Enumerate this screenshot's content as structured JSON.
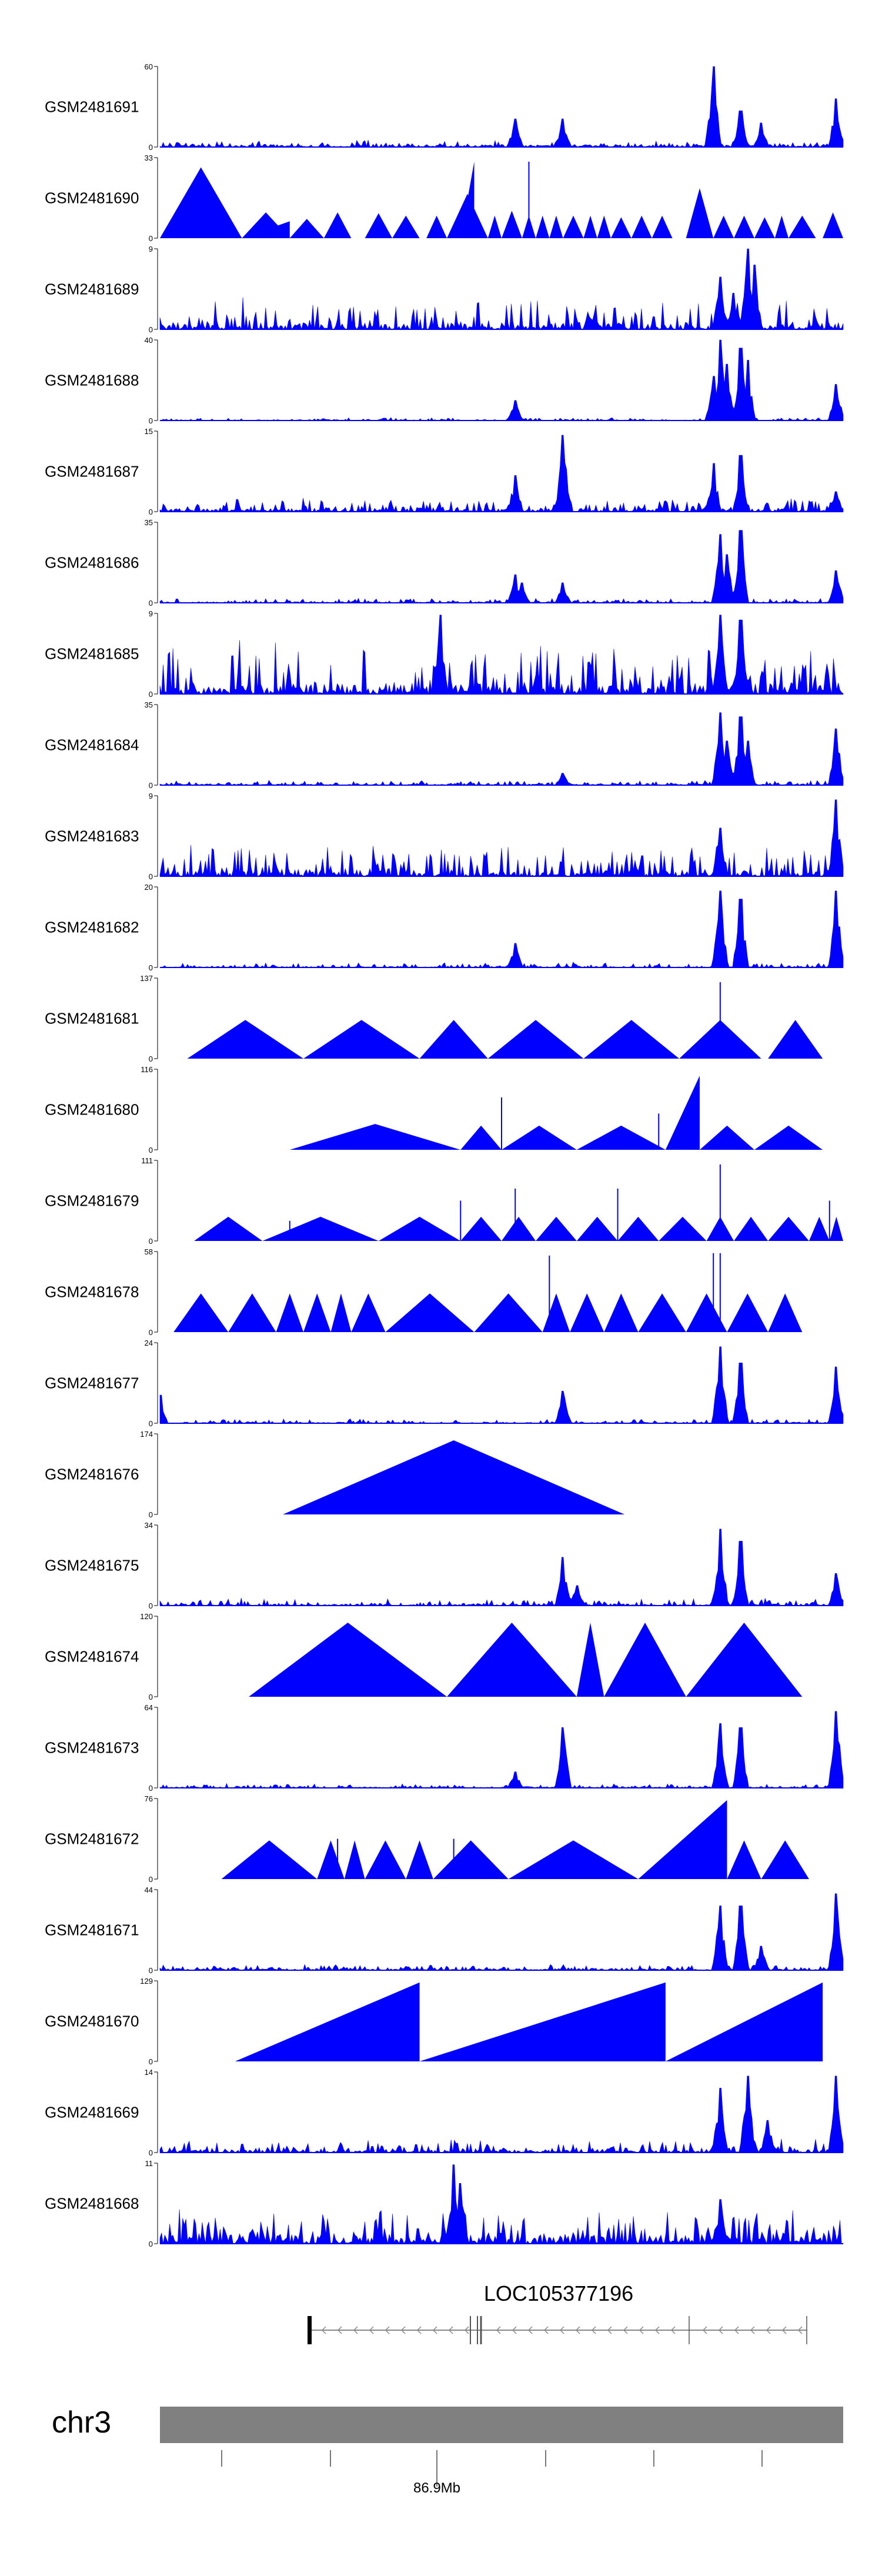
{
  "chart_data": {
    "type": "area",
    "title": "",
    "xlabel": "",
    "ylabel": "",
    "color": "#0000ff",
    "grid": false,
    "region": {
      "chromosome": "chr3",
      "axis_label": "86.9Mb"
    },
    "gene": {
      "name": "LOC105377196",
      "strand": "-"
    },
    "tracks": [
      {
        "name": "GSM2481691",
        "ymax": "60",
        "ymin": "0",
        "style": "spiky",
        "seed": 1,
        "base": 0.04,
        "noise": 0.06,
        "peaks": [
          [
            0.52,
            0.35
          ],
          [
            0.59,
            0.35
          ],
          [
            0.81,
            1.0
          ],
          [
            0.85,
            0.45
          ],
          [
            0.88,
            0.3
          ],
          [
            0.99,
            0.6
          ]
        ]
      },
      {
        "name": "GSM2481690",
        "ymax": "33",
        "ymin": "0",
        "style": "tri",
        "tris": [
          [
            0.0,
            0.12,
            0.88,
            1
          ],
          [
            0.12,
            0.19,
            0.32,
            1
          ],
          [
            0.12,
            0.19,
            0.21,
            0
          ],
          [
            0.19,
            0.24,
            0.24,
            1
          ],
          [
            0.24,
            0.28,
            0.32,
            1
          ],
          [
            0.3,
            0.34,
            0.31,
            1
          ],
          [
            0.34,
            0.38,
            0.28,
            1
          ],
          [
            0.39,
            0.42,
            0.28,
            1
          ],
          [
            0.42,
            0.48,
            0.55,
            1
          ],
          [
            0.44,
            0.46,
            0.95,
            0
          ],
          [
            0.48,
            0.5,
            0.28,
            1
          ],
          [
            0.5,
            0.53,
            0.34,
            1
          ],
          [
            0.53,
            0.55,
            0.28,
            1
          ],
          [
            0.55,
            0.57,
            0.28,
            1
          ],
          [
            0.57,
            0.59,
            0.28,
            1
          ],
          [
            0.59,
            0.62,
            0.28,
            1
          ],
          [
            0.62,
            0.64,
            0.28,
            1
          ],
          [
            0.64,
            0.66,
            0.28,
            1
          ],
          [
            0.66,
            0.69,
            0.26,
            1
          ],
          [
            0.69,
            0.72,
            0.28,
            1
          ],
          [
            0.72,
            0.75,
            0.28,
            1
          ],
          [
            0.77,
            0.81,
            0.62,
            1
          ],
          [
            0.81,
            0.84,
            0.28,
            1
          ],
          [
            0.84,
            0.87,
            0.28,
            1
          ],
          [
            0.87,
            0.9,
            0.26,
            1
          ],
          [
            0.9,
            0.92,
            0.28,
            1
          ],
          [
            0.92,
            0.96,
            0.28,
            1
          ],
          [
            0.97,
            1.0,
            0.32,
            1
          ]
        ],
        "spikes": [
          [
            0.54,
            0.95
          ]
        ]
      },
      {
        "name": "GSM2481689",
        "ymax": "9",
        "ymin": "0",
        "style": "spiky",
        "seed": 3,
        "base": 0.1,
        "noise": 0.32,
        "peaks": [
          [
            0.82,
            0.65
          ],
          [
            0.86,
            1.0
          ],
          [
            0.87,
            0.8
          ],
          [
            0.84,
            0.45
          ]
        ]
      },
      {
        "name": "GSM2481688",
        "ymax": "40",
        "ymin": "0",
        "style": "spiky",
        "seed": 4,
        "base": 0.01,
        "noise": 0.03,
        "peaks": [
          [
            0.52,
            0.25
          ],
          [
            0.81,
            0.55
          ],
          [
            0.82,
            1.0
          ],
          [
            0.83,
            0.7
          ],
          [
            0.85,
            0.9
          ],
          [
            0.86,
            0.75
          ],
          [
            0.99,
            0.45
          ]
        ]
      },
      {
        "name": "GSM2481687",
        "ymax": "15",
        "ymin": "0",
        "style": "spiky",
        "seed": 5,
        "base": 0.05,
        "noise": 0.14,
        "peaks": [
          [
            0.52,
            0.45
          ],
          [
            0.59,
            0.95
          ],
          [
            0.81,
            0.6
          ],
          [
            0.85,
            0.7
          ],
          [
            0.99,
            0.25
          ]
        ]
      },
      {
        "name": "GSM2481686",
        "ymax": "35",
        "ymin": "0",
        "style": "spiky",
        "seed": 6,
        "base": 0.02,
        "noise": 0.05,
        "peaks": [
          [
            0.52,
            0.35
          ],
          [
            0.53,
            0.25
          ],
          [
            0.59,
            0.25
          ],
          [
            0.82,
            0.85
          ],
          [
            0.83,
            0.6
          ],
          [
            0.85,
            0.9
          ],
          [
            0.99,
            0.4
          ]
        ]
      },
      {
        "name": "GSM2481685",
        "ymax": "9",
        "ymin": "0",
        "style": "spiky",
        "seed": 7,
        "base": 0.18,
        "noise": 0.55,
        "peaks": [
          [
            0.41,
            0.98
          ],
          [
            0.82,
            0.98
          ],
          [
            0.85,
            0.92
          ]
        ]
      },
      {
        "name": "GSM2481684",
        "ymax": "35",
        "ymin": "0",
        "style": "spiky",
        "seed": 8,
        "base": 0.02,
        "noise": 0.05,
        "peaks": [
          [
            0.59,
            0.15
          ],
          [
            0.82,
            0.9
          ],
          [
            0.83,
            0.55
          ],
          [
            0.85,
            0.85
          ],
          [
            0.86,
            0.55
          ],
          [
            0.99,
            0.7
          ]
        ]
      },
      {
        "name": "GSM2481683",
        "ymax": "9",
        "ymin": "0",
        "style": "spiky",
        "seed": 9,
        "base": 0.1,
        "noise": 0.35,
        "peaks": [
          [
            0.82,
            0.6
          ],
          [
            0.99,
            0.95
          ]
        ]
      },
      {
        "name": "GSM2481682",
        "ymax": "20",
        "ymin": "0",
        "style": "spiky",
        "seed": 10,
        "base": 0.02,
        "noise": 0.05,
        "peaks": [
          [
            0.52,
            0.3
          ],
          [
            0.82,
            0.95
          ],
          [
            0.85,
            0.85
          ],
          [
            0.99,
            0.95
          ]
        ]
      },
      {
        "name": "GSM2481681",
        "ymax": "137",
        "ymin": "0",
        "style": "tri",
        "tris": [
          [
            0.04,
            0.21,
            0.48,
            1
          ],
          [
            0.21,
            0.38,
            0.48,
            1
          ],
          [
            0.38,
            0.48,
            0.48,
            1
          ],
          [
            0.48,
            0.62,
            0.48,
            1
          ],
          [
            0.62,
            0.76,
            0.48,
            1
          ],
          [
            0.76,
            0.88,
            0.48,
            1
          ],
          [
            0.89,
            0.97,
            0.48,
            1
          ]
        ],
        "spikes": [
          [
            0.82,
            0.95
          ]
        ]
      },
      {
        "name": "GSM2481680",
        "ymax": "116",
        "ymin": "0",
        "style": "tri",
        "tris": [
          [
            0.19,
            0.44,
            0.32,
            1
          ],
          [
            0.44,
            0.5,
            0.3,
            1
          ],
          [
            0.5,
            0.61,
            0.3,
            1
          ],
          [
            0.61,
            0.74,
            0.3,
            1
          ],
          [
            0.74,
            0.79,
            0.92,
            0
          ],
          [
            0.79,
            0.87,
            0.3,
            1
          ],
          [
            0.87,
            0.97,
            0.3,
            1
          ]
        ],
        "spikes": [
          [
            0.5,
            0.65
          ],
          [
            0.73,
            0.45
          ]
        ]
      },
      {
        "name": "GSM2481679",
        "ymax": "111",
        "ymin": "0",
        "style": "tri",
        "tris": [
          [
            0.05,
            0.15,
            0.3,
            1
          ],
          [
            0.15,
            0.32,
            0.3,
            1
          ],
          [
            0.32,
            0.44,
            0.3,
            1
          ],
          [
            0.44,
            0.5,
            0.3,
            1
          ],
          [
            0.5,
            0.55,
            0.3,
            1
          ],
          [
            0.55,
            0.61,
            0.3,
            1
          ],
          [
            0.61,
            0.67,
            0.3,
            1
          ],
          [
            0.67,
            0.73,
            0.3,
            1
          ],
          [
            0.73,
            0.8,
            0.3,
            1
          ],
          [
            0.8,
            0.84,
            0.3,
            1
          ],
          [
            0.84,
            0.89,
            0.3,
            1
          ],
          [
            0.89,
            0.95,
            0.3,
            1
          ],
          [
            0.95,
            0.98,
            0.3,
            1
          ],
          [
            0.98,
            1.0,
            0.3,
            1
          ]
        ],
        "spikes": [
          [
            0.19,
            0.25
          ],
          [
            0.44,
            0.5
          ],
          [
            0.52,
            0.65
          ],
          [
            0.67,
            0.65
          ],
          [
            0.82,
            0.95
          ],
          [
            0.98,
            0.5
          ]
        ]
      },
      {
        "name": "GSM2481678",
        "ymax": "58",
        "ymin": "0",
        "style": "tri",
        "tris": [
          [
            0.02,
            0.1,
            0.48,
            1
          ],
          [
            0.1,
            0.17,
            0.48,
            1
          ],
          [
            0.17,
            0.21,
            0.48,
            1
          ],
          [
            0.21,
            0.25,
            0.48,
            1
          ],
          [
            0.25,
            0.28,
            0.48,
            1
          ],
          [
            0.28,
            0.33,
            0.48,
            1
          ],
          [
            0.33,
            0.46,
            0.48,
            1
          ],
          [
            0.46,
            0.56,
            0.48,
            1
          ],
          [
            0.56,
            0.6,
            0.48,
            1
          ],
          [
            0.6,
            0.65,
            0.48,
            1
          ],
          [
            0.65,
            0.7,
            0.48,
            1
          ],
          [
            0.7,
            0.77,
            0.48,
            1
          ],
          [
            0.77,
            0.83,
            0.48,
            1
          ],
          [
            0.83,
            0.89,
            0.48,
            1
          ],
          [
            0.89,
            0.94,
            0.48,
            1
          ]
        ],
        "spikes": [
          [
            0.57,
            0.95
          ],
          [
            0.81,
            0.98
          ],
          [
            0.82,
            0.98
          ]
        ]
      },
      {
        "name": "GSM2481677",
        "ymax": "24",
        "ymin": "0",
        "style": "spiky",
        "seed": 15,
        "base": 0.02,
        "noise": 0.05,
        "peaks": [
          [
            0.0,
            0.35
          ],
          [
            0.59,
            0.4
          ],
          [
            0.82,
            0.95
          ],
          [
            0.85,
            0.75
          ],
          [
            0.99,
            0.7
          ]
        ]
      },
      {
        "name": "GSM2481676",
        "ymax": "174",
        "ymin": "0",
        "style": "tri",
        "tris": [
          [
            0.18,
            0.68,
            0.92,
            1
          ]
        ],
        "spikes": []
      },
      {
        "name": "GSM2481675",
        "ymax": "34",
        "ymin": "0",
        "style": "spiky",
        "seed": 17,
        "base": 0.03,
        "noise": 0.07,
        "peaks": [
          [
            0.59,
            0.6
          ],
          [
            0.61,
            0.25
          ],
          [
            0.82,
            0.95
          ],
          [
            0.85,
            0.8
          ],
          [
            0.99,
            0.4
          ]
        ]
      },
      {
        "name": "GSM2481674",
        "ymax": "120",
        "ymin": "0",
        "style": "tri",
        "tris": [
          [
            0.13,
            0.42,
            0.92,
            1
          ],
          [
            0.42,
            0.61,
            0.92,
            1
          ],
          [
            0.61,
            0.65,
            0.92,
            1
          ],
          [
            0.65,
            0.77,
            0.92,
            1
          ],
          [
            0.77,
            0.94,
            0.92,
            1
          ]
        ],
        "spikes": []
      },
      {
        "name": "GSM2481673",
        "ymax": "64",
        "ymin": "0",
        "style": "spiky",
        "seed": 19,
        "base": 0.02,
        "noise": 0.04,
        "peaks": [
          [
            0.52,
            0.2
          ],
          [
            0.59,
            0.75
          ],
          [
            0.82,
            0.8
          ],
          [
            0.85,
            0.75
          ],
          [
            0.99,
            0.95
          ]
        ]
      },
      {
        "name": "GSM2481672",
        "ymax": "76",
        "ymin": "0",
        "style": "tri",
        "tris": [
          [
            0.09,
            0.23,
            0.48,
            1
          ],
          [
            0.23,
            0.27,
            0.48,
            1
          ],
          [
            0.27,
            0.3,
            0.48,
            1
          ],
          [
            0.3,
            0.36,
            0.48,
            1
          ],
          [
            0.36,
            0.4,
            0.48,
            1
          ],
          [
            0.4,
            0.51,
            0.48,
            1
          ],
          [
            0.51,
            0.7,
            0.48,
            1
          ],
          [
            0.7,
            0.83,
            0.98,
            0
          ],
          [
            0.83,
            0.88,
            0.48,
            1
          ],
          [
            0.88,
            0.95,
            0.48,
            1
          ]
        ],
        "spikes": [
          [
            0.26,
            0.5
          ],
          [
            0.43,
            0.5
          ]
        ]
      },
      {
        "name": "GSM2481671",
        "ymax": "44",
        "ymin": "0",
        "style": "spiky",
        "seed": 21,
        "base": 0.03,
        "noise": 0.06,
        "peaks": [
          [
            0.82,
            0.8
          ],
          [
            0.85,
            0.8
          ],
          [
            0.88,
            0.3
          ],
          [
            0.99,
            0.95
          ]
        ]
      },
      {
        "name": "GSM2481670",
        "ymax": "129",
        "ymin": "0",
        "style": "tri",
        "tris": [
          [
            0.11,
            0.38,
            0.98,
            0
          ],
          [
            0.38,
            0.74,
            0.98,
            0
          ],
          [
            0.74,
            0.97,
            0.98,
            0
          ]
        ],
        "spikes": []
      },
      {
        "name": "GSM2481669",
        "ymax": "14",
        "ymin": "0",
        "style": "spiky",
        "seed": 23,
        "base": 0.05,
        "noise": 0.14,
        "peaks": [
          [
            0.82,
            0.8
          ],
          [
            0.86,
            0.95
          ],
          [
            0.89,
            0.4
          ],
          [
            0.99,
            0.95
          ]
        ]
      },
      {
        "name": "GSM2481668",
        "ymax": "11",
        "ymin": "0",
        "style": "spiky",
        "seed": 24,
        "base": 0.14,
        "noise": 0.36,
        "peaks": [
          [
            0.43,
            0.98
          ],
          [
            0.44,
            0.75
          ],
          [
            0.82,
            0.55
          ]
        ]
      }
    ]
  }
}
